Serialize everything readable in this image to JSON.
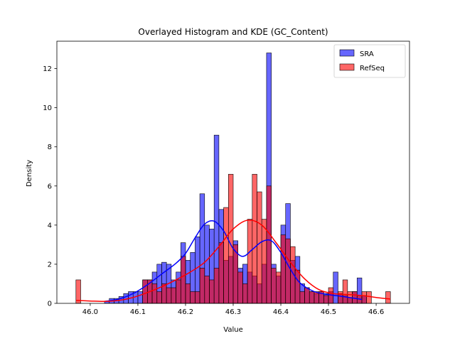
{
  "chart_data": {
    "type": "histogram",
    "title": "Overlayed Histogram and KDE (GC_Content)",
    "xlabel": "Value",
    "ylabel": "Density",
    "xlim": [
      45.93,
      46.67
    ],
    "ylim": [
      0,
      13.4
    ],
    "xticks": [
      46.0,
      46.1,
      46.2,
      46.3,
      46.4,
      46.5,
      46.6
    ],
    "xtick_labels": [
      "46.0",
      "46.1",
      "46.2",
      "46.3",
      "46.4",
      "46.5",
      "46.6"
    ],
    "yticks": [
      0,
      2,
      4,
      6,
      8,
      10,
      12
    ],
    "ytick_labels": [
      "0",
      "2",
      "4",
      "6",
      "8",
      "10",
      "12"
    ],
    "legend": {
      "position": "top-right",
      "entries": [
        "SRA",
        "RefSeq"
      ]
    },
    "grid": false,
    "series": [
      {
        "name": "SRA",
        "color": "#0000ff",
        "fill_opacity": 0.6,
        "bin_width": 0.01,
        "bins": [
          [
            46.035,
            0.12
          ],
          [
            46.045,
            0.25
          ],
          [
            46.055,
            0.25
          ],
          [
            46.065,
            0.35
          ],
          [
            46.075,
            0.5
          ],
          [
            46.085,
            0.6
          ],
          [
            46.095,
            0.6
          ],
          [
            46.105,
            0.6
          ],
          [
            46.115,
            1.2
          ],
          [
            46.125,
            1.2
          ],
          [
            46.135,
            1.6
          ],
          [
            46.145,
            2.0
          ],
          [
            46.155,
            2.1
          ],
          [
            46.165,
            2.0
          ],
          [
            46.175,
            1.2
          ],
          [
            46.185,
            1.6
          ],
          [
            46.195,
            3.1
          ],
          [
            46.205,
            2.2
          ],
          [
            46.215,
            2.6
          ],
          [
            46.225,
            3.4
          ],
          [
            46.235,
            5.6
          ],
          [
            46.245,
            4.0
          ],
          [
            46.255,
            3.8
          ],
          [
            46.265,
            8.6
          ],
          [
            46.275,
            4.8
          ],
          [
            46.285,
            2.2
          ],
          [
            46.295,
            2.4
          ],
          [
            46.305,
            3.2
          ],
          [
            46.315,
            1.8
          ],
          [
            46.325,
            2.0
          ],
          [
            46.335,
            1.6
          ],
          [
            46.345,
            1.4
          ],
          [
            46.355,
            1.0
          ],
          [
            46.365,
            2.0
          ],
          [
            46.375,
            12.8
          ],
          [
            46.385,
            2.0
          ],
          [
            46.395,
            1.4
          ],
          [
            46.405,
            4.0
          ],
          [
            46.415,
            5.1
          ],
          [
            46.425,
            2.2
          ],
          [
            46.435,
            2.4
          ],
          [
            46.445,
            1.0
          ],
          [
            46.455,
            0.8
          ],
          [
            46.465,
            0.6
          ],
          [
            46.475,
            0.5
          ],
          [
            46.485,
            0.6
          ],
          [
            46.495,
            0.5
          ],
          [
            46.505,
            0.6
          ],
          [
            46.515,
            1.6
          ],
          [
            46.525,
            0.5
          ],
          [
            46.535,
            0.4
          ],
          [
            46.545,
            0.3
          ],
          [
            46.555,
            0.6
          ],
          [
            46.565,
            1.3
          ],
          [
            46.575,
            0.4
          ]
        ],
        "kde": {
          "x": [
            46.03,
            46.06,
            46.09,
            46.12,
            46.15,
            46.18,
            46.2,
            46.22,
            46.24,
            46.26,
            46.28,
            46.3,
            46.32,
            46.34,
            46.36,
            46.38,
            46.4,
            46.42,
            46.44,
            46.47,
            46.5,
            46.53,
            46.57
          ],
          "y": [
            0.1,
            0.22,
            0.5,
            0.95,
            1.5,
            2.05,
            2.55,
            3.35,
            4.05,
            4.2,
            3.7,
            2.8,
            2.4,
            2.75,
            3.15,
            3.2,
            2.6,
            1.75,
            1.05,
            0.6,
            0.45,
            0.35,
            0.2
          ]
        }
      },
      {
        "name": "RefSeq",
        "color": "#ff0000",
        "fill_opacity": 0.6,
        "bin_width": 0.01,
        "bins": [
          [
            45.975,
            1.2
          ],
          [
            46.115,
            1.2
          ],
          [
            46.125,
            1.2
          ],
          [
            46.135,
            1.0
          ],
          [
            46.145,
            0.6
          ],
          [
            46.155,
            1.0
          ],
          [
            46.165,
            0.8
          ],
          [
            46.175,
            0.8
          ],
          [
            46.185,
            1.2
          ],
          [
            46.195,
            2.4
          ],
          [
            46.205,
            1.0
          ],
          [
            46.215,
            0.6
          ],
          [
            46.225,
            0.6
          ],
          [
            46.235,
            1.8
          ],
          [
            46.245,
            1.4
          ],
          [
            46.255,
            1.2
          ],
          [
            46.265,
            1.8
          ],
          [
            46.275,
            3.1
          ],
          [
            46.285,
            4.9
          ],
          [
            46.295,
            6.6
          ],
          [
            46.305,
            3.0
          ],
          [
            46.315,
            1.6
          ],
          [
            46.325,
            1.0
          ],
          [
            46.335,
            4.3
          ],
          [
            46.345,
            6.6
          ],
          [
            46.355,
            5.7
          ],
          [
            46.365,
            4.3
          ],
          [
            46.375,
            6.0
          ],
          [
            46.385,
            1.8
          ],
          [
            46.395,
            1.6
          ],
          [
            46.405,
            3.5
          ],
          [
            46.415,
            3.3
          ],
          [
            46.425,
            2.9
          ],
          [
            46.435,
            1.7
          ],
          [
            46.445,
            0.6
          ],
          [
            46.455,
            0.8
          ],
          [
            46.465,
            0.6
          ],
          [
            46.475,
            0.6
          ],
          [
            46.485,
            0.6
          ],
          [
            46.495,
            0.4
          ],
          [
            46.505,
            0.8
          ],
          [
            46.525,
            0.6
          ],
          [
            46.535,
            1.2
          ],
          [
            46.545,
            0.6
          ],
          [
            46.555,
            0.6
          ],
          [
            46.565,
            0.4
          ],
          [
            46.575,
            0.6
          ],
          [
            46.585,
            0.6
          ],
          [
            46.625,
            0.6
          ]
        ],
        "kde": {
          "x": [
            45.97,
            46.0,
            46.03,
            46.06,
            46.09,
            46.12,
            46.15,
            46.18,
            46.21,
            46.24,
            46.27,
            46.3,
            46.33,
            46.36,
            46.39,
            46.42,
            46.45,
            46.48,
            46.51,
            46.54,
            46.57,
            46.6,
            46.63
          ],
          "y": [
            0.15,
            0.12,
            0.1,
            0.15,
            0.3,
            0.55,
            0.85,
            1.2,
            1.6,
            2.1,
            2.9,
            3.8,
            4.25,
            4.0,
            3.1,
            2.1,
            1.25,
            0.7,
            0.5,
            0.45,
            0.4,
            0.3,
            0.22
          ]
        }
      }
    ]
  }
}
